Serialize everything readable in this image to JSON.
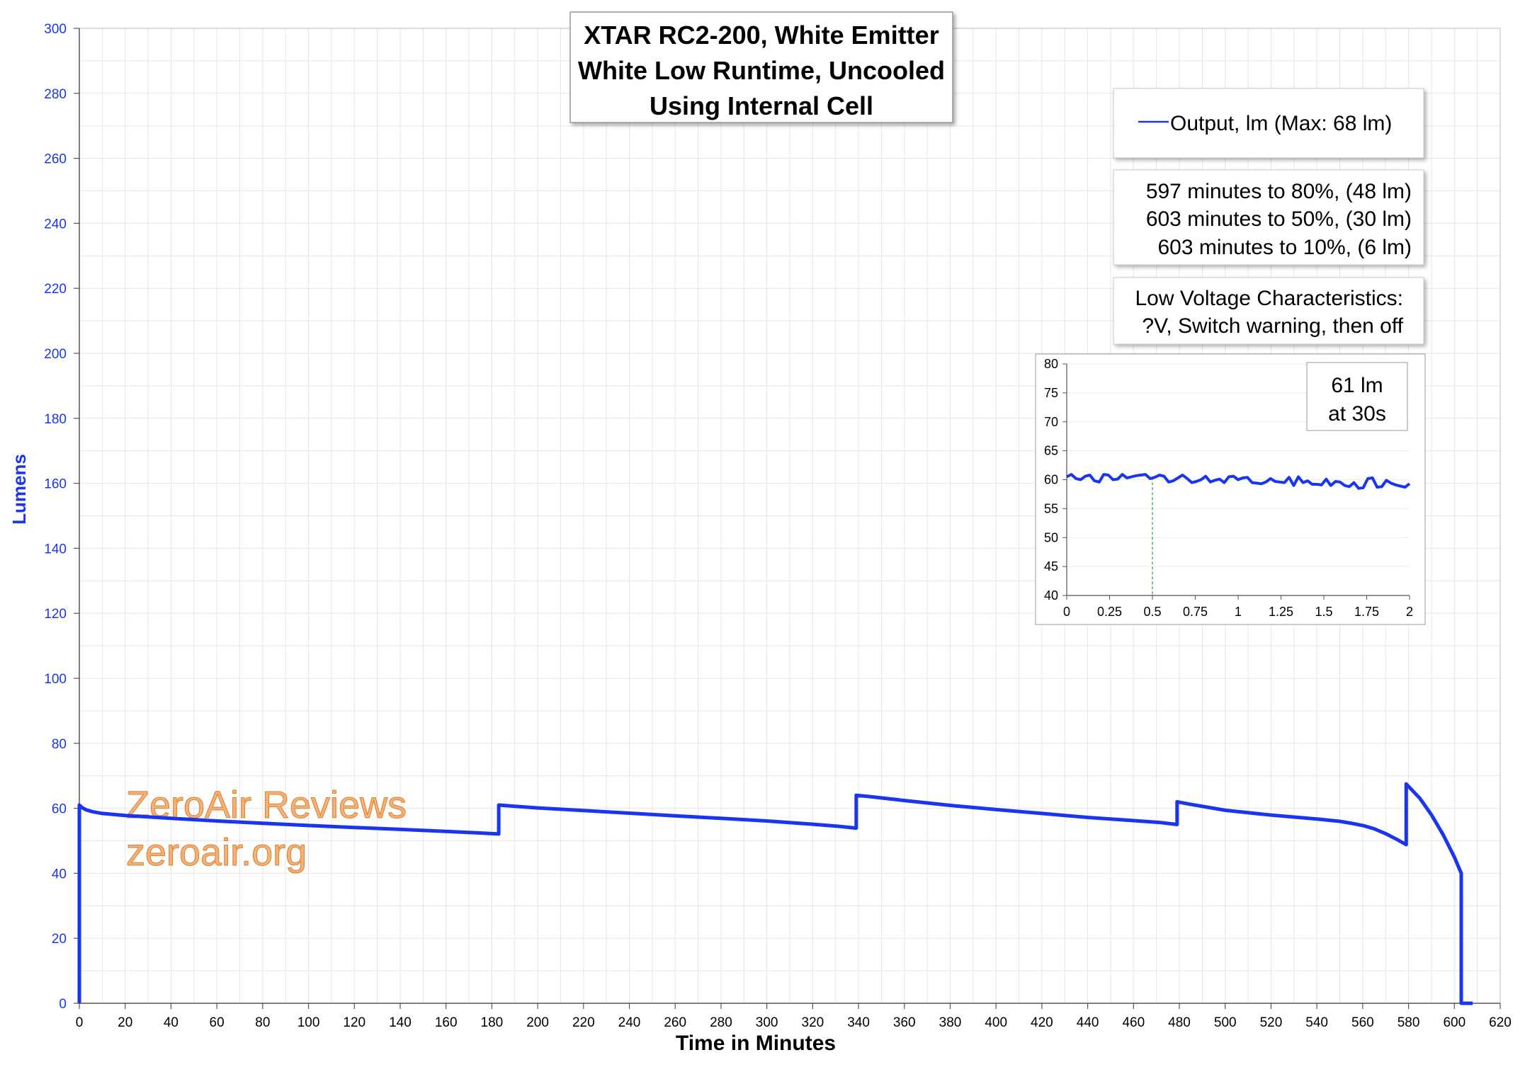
{
  "chart_data": {
    "type": "line",
    "title": [
      "XTAR RC2-200, White Emitter",
      "White Low Runtime, Uncooled",
      "Using Internal Cell"
    ],
    "xlabel": "Time in Minutes",
    "ylabel": "Lumens",
    "xlim": [
      0,
      620
    ],
    "ylim": [
      0,
      300
    ],
    "x_ticks": [
      0,
      20,
      40,
      60,
      80,
      100,
      120,
      140,
      160,
      180,
      200,
      220,
      240,
      260,
      280,
      300,
      320,
      340,
      360,
      380,
      400,
      420,
      440,
      460,
      480,
      500,
      520,
      540,
      560,
      580,
      600,
      620
    ],
    "y_ticks": [
      0,
      20,
      40,
      60,
      80,
      100,
      120,
      140,
      160,
      180,
      200,
      220,
      240,
      260,
      280,
      300
    ],
    "grid": true,
    "legend_position": "top-right",
    "series": [
      {
        "name": "Output, lm (Max: 68 lm)",
        "color": "#1a35f0",
        "points": [
          [
            0,
            0
          ],
          [
            0,
            61
          ],
          [
            1,
            60.3
          ],
          [
            3,
            59.5
          ],
          [
            6,
            58.9
          ],
          [
            10,
            58.4
          ],
          [
            20,
            57.8
          ],
          [
            40,
            56.9
          ],
          [
            60,
            56.1
          ],
          [
            80,
            55.4
          ],
          [
            100,
            54.7
          ],
          [
            120,
            54.1
          ],
          [
            140,
            53.5
          ],
          [
            160,
            52.9
          ],
          [
            175,
            52.4
          ],
          [
            183,
            52.1
          ],
          [
            183,
            61
          ],
          [
            190,
            60.6
          ],
          [
            200,
            60.1
          ],
          [
            220,
            59.3
          ],
          [
            240,
            58.5
          ],
          [
            260,
            57.7
          ],
          [
            280,
            56.9
          ],
          [
            300,
            56.1
          ],
          [
            320,
            55.1
          ],
          [
            332,
            54.4
          ],
          [
            339,
            53.9
          ],
          [
            339,
            64
          ],
          [
            345,
            63.6
          ],
          [
            360,
            62.4
          ],
          [
            380,
            60.9
          ],
          [
            400,
            59.6
          ],
          [
            420,
            58.4
          ],
          [
            440,
            57.2
          ],
          [
            460,
            56.2
          ],
          [
            472,
            55.6
          ],
          [
            479,
            55
          ],
          [
            479,
            62
          ],
          [
            485,
            61.2
          ],
          [
            500,
            59.4
          ],
          [
            520,
            57.9
          ],
          [
            540,
            56.7
          ],
          [
            550,
            56
          ],
          [
            555,
            55.4
          ],
          [
            560,
            54.7
          ],
          [
            565,
            53.7
          ],
          [
            570,
            52.2
          ],
          [
            575,
            50.4
          ],
          [
            579,
            48.8
          ],
          [
            579,
            67.5
          ],
          [
            585,
            63
          ],
          [
            590,
            58
          ],
          [
            595,
            52
          ],
          [
            600,
            45
          ],
          [
            603,
            40
          ],
          [
            603,
            0
          ],
          [
            608,
            0
          ]
        ]
      }
    ],
    "info_box_1": [
      "597 minutes to 80%, (48 lm)",
      "603 minutes to 50%, (30 lm)",
      "603 minutes to 10%, (6 lm)"
    ],
    "info_box_2": [
      "Low Voltage Characteristics:",
      "?V, Switch warning, then off"
    ],
    "inset": {
      "xlim": [
        0,
        2
      ],
      "ylim": [
        40,
        80
      ],
      "x_ticks": [
        "0",
        "0.25",
        "0.5",
        "0.75",
        "1",
        "1.25",
        "1.5",
        "1.75",
        "2"
      ],
      "y_ticks": [
        40,
        45,
        50,
        55,
        60,
        65,
        70,
        75,
        80
      ],
      "annotation": [
        "61 lm",
        "at 30s"
      ],
      "marker_x": 0.5,
      "values": [
        60.5,
        60.9,
        60.2,
        60.0,
        60.6,
        60.8,
        59.8,
        59.6,
        60.9,
        60.8,
        60.0,
        60.1,
        60.9,
        60.3,
        60.5,
        60.7,
        60.8,
        60.9,
        60.2,
        60.4,
        60.8,
        60.6,
        59.6,
        59.8,
        60.3,
        60.8,
        60.2,
        59.5,
        59.7,
        60.0,
        60.6,
        59.6,
        59.9,
        60.1,
        59.5,
        60.5,
        60.6,
        60.0,
        60.3,
        60.4,
        59.5,
        59.4,
        59.3,
        59.6,
        60.2,
        59.7,
        59.6,
        59.5,
        60.4,
        59.0,
        60.5,
        59.5,
        59.8,
        59.2,
        59.2,
        59.1,
        60.1,
        59.0,
        59.7,
        59.6,
        59.0,
        58.8,
        59.5,
        58.5,
        58.6,
        60.2,
        60.3,
        58.7,
        58.8,
        59.9,
        59.4,
        59.1,
        58.9,
        58.7,
        59.3
      ]
    }
  },
  "watermark": [
    "ZeroAir Reviews",
    "zeroair.org"
  ]
}
